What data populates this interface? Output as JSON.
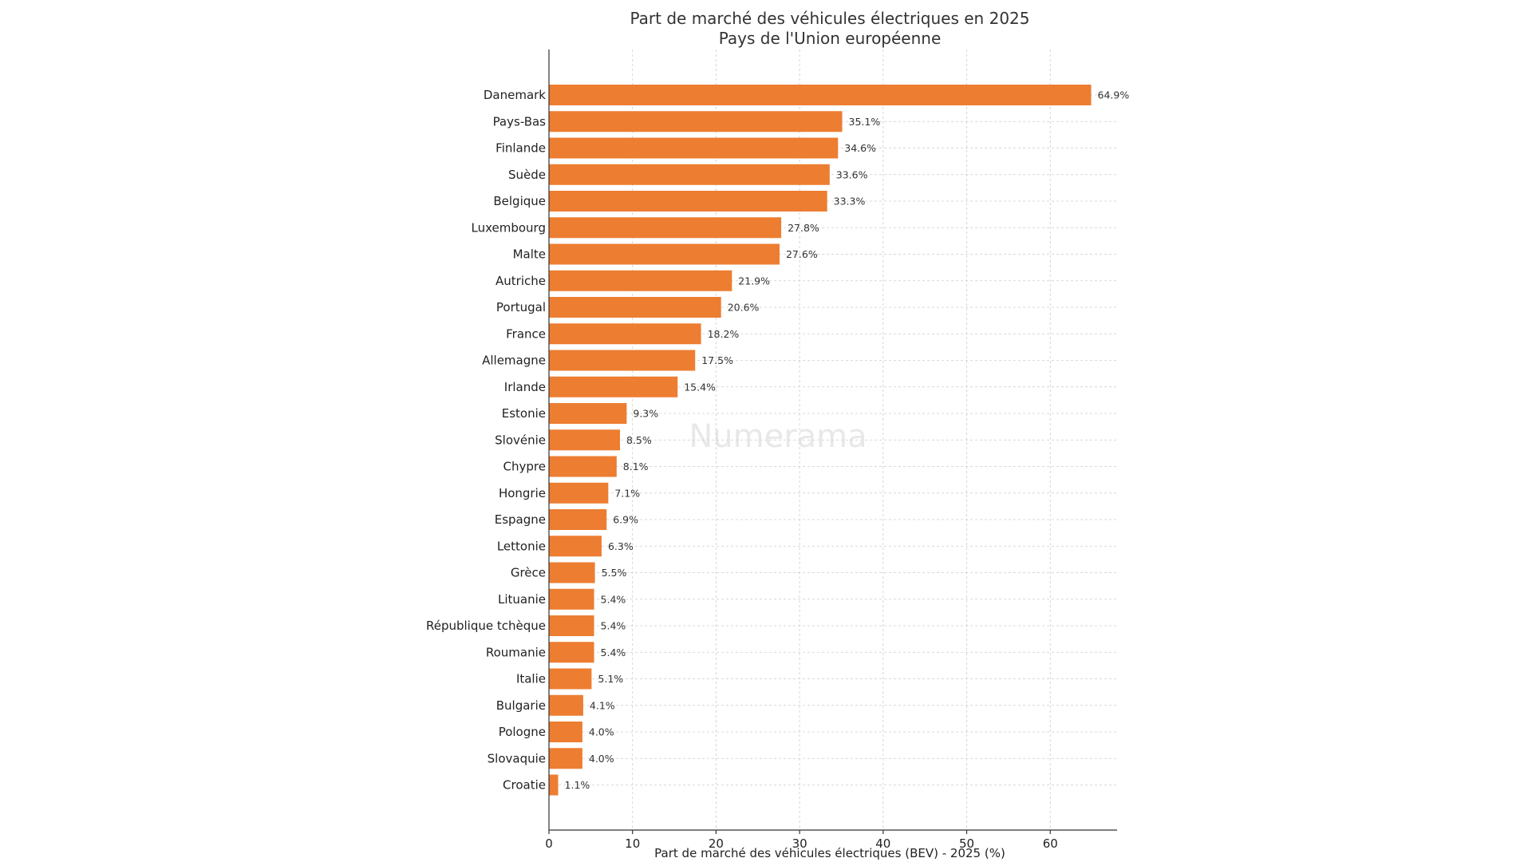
{
  "chart_data": {
    "type": "bar",
    "orientation": "horizontal",
    "title": "Part de marché des véhicules électriques en 2025",
    "subtitle": "Pays de l'Union européenne",
    "xlabel": "Part de marché des véhicules électriques (BEV) - 2025 (%)",
    "ylabel": "",
    "xlim": [
      0,
      68
    ],
    "xticks": [
      0,
      10,
      20,
      30,
      40,
      50,
      60
    ],
    "grid": true,
    "bar_color": "#ED7D31",
    "watermark": "Numerama",
    "categories": [
      "Danemark",
      "Pays-Bas",
      "Finlande",
      "Suède",
      "Belgique",
      "Luxembourg",
      "Malte",
      "Autriche",
      "Portugal",
      "France",
      "Allemagne",
      "Irlande",
      "Estonie",
      "Slovénie",
      "Chypre",
      "Hongrie",
      "Espagne",
      "Lettonie",
      "Grèce",
      "Lituanie",
      "République tchèque",
      "Roumanie",
      "Italie",
      "Bulgarie",
      "Pologne",
      "Slovaquie",
      "Croatie"
    ],
    "values": [
      64.9,
      35.1,
      34.6,
      33.6,
      33.3,
      27.8,
      27.6,
      21.9,
      20.6,
      18.2,
      17.5,
      15.4,
      9.3,
      8.5,
      8.1,
      7.1,
      6.9,
      6.3,
      5.5,
      5.4,
      5.4,
      5.4,
      5.1,
      4.1,
      4.0,
      4.0,
      1.1
    ],
    "value_labels": [
      "64.9%",
      "35.1%",
      "34.6%",
      "33.6%",
      "33.3%",
      "27.8%",
      "27.6%",
      "21.9%",
      "20.6%",
      "18.2%",
      "17.5%",
      "15.4%",
      "9.3%",
      "8.5%",
      "8.1%",
      "7.1%",
      "6.9%",
      "6.3%",
      "5.5%",
      "5.4%",
      "5.4%",
      "5.4%",
      "5.1%",
      "4.1%",
      "4.0%",
      "4.0%",
      "1.1%"
    ]
  }
}
